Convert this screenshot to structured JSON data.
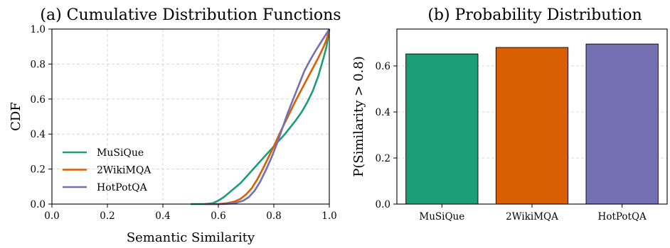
{
  "chart_data": [
    {
      "type": "line",
      "title": "(a) Cumulative Distribution Functions",
      "xlabel": "Semantic Similarity",
      "ylabel": "CDF",
      "xlim": [
        0.0,
        1.0
      ],
      "ylim": [
        0.0,
        1.0
      ],
      "xticks": [
        "0.0",
        "0.2",
        "0.4",
        "0.6",
        "0.8",
        "1.0"
      ],
      "yticks": [
        "0.0",
        "0.2",
        "0.4",
        "0.6",
        "0.8",
        "1.0"
      ],
      "grid": true,
      "legend": "lower-left",
      "series": [
        {
          "name": "MuSiQue",
          "color": "#1b9e77",
          "x": [
            0.5,
            0.55,
            0.58,
            0.6,
            0.62,
            0.65,
            0.68,
            0.7,
            0.72,
            0.74,
            0.76,
            0.78,
            0.8,
            0.82,
            0.84,
            0.86,
            0.88,
            0.9,
            0.92,
            0.94,
            0.96,
            0.98,
            0.99,
            1.0
          ],
          "y": [
            0.0,
            0.0,
            0.005,
            0.02,
            0.04,
            0.08,
            0.12,
            0.155,
            0.19,
            0.225,
            0.26,
            0.295,
            0.33,
            0.365,
            0.4,
            0.44,
            0.48,
            0.525,
            0.58,
            0.645,
            0.73,
            0.84,
            0.9,
            1.0
          ]
        },
        {
          "name": "2WikiMQA",
          "color": "#d95f02",
          "x": [
            0.55,
            0.6,
            0.63,
            0.66,
            0.68,
            0.7,
            0.72,
            0.74,
            0.76,
            0.78,
            0.8,
            0.82,
            0.84,
            0.86,
            0.88,
            0.9,
            0.92,
            0.94,
            0.96,
            0.98,
            0.99,
            1.0
          ],
          "y": [
            0.0,
            0.0,
            0.005,
            0.015,
            0.03,
            0.055,
            0.09,
            0.14,
            0.2,
            0.265,
            0.33,
            0.4,
            0.465,
            0.53,
            0.595,
            0.655,
            0.715,
            0.775,
            0.835,
            0.9,
            0.94,
            1.0
          ]
        },
        {
          "name": "HotPotQA",
          "color": "#7570b3",
          "x": [
            0.55,
            0.62,
            0.66,
            0.69,
            0.71,
            0.73,
            0.75,
            0.77,
            0.79,
            0.81,
            0.83,
            0.85,
            0.87,
            0.89,
            0.91,
            0.93,
            0.95,
            0.97,
            0.99,
            1.0
          ],
          "y": [
            0.0,
            0.0,
            0.005,
            0.02,
            0.04,
            0.075,
            0.125,
            0.19,
            0.26,
            0.34,
            0.43,
            0.52,
            0.6,
            0.68,
            0.76,
            0.82,
            0.875,
            0.925,
            0.975,
            1.0
          ]
        }
      ]
    },
    {
      "type": "bar",
      "title": "(b) Probability Distribution",
      "xlabel": "",
      "ylabel": "P(Similarity > 0.8)",
      "ylim": [
        0.0,
        0.76
      ],
      "yticks": [
        "0.0",
        "0.2",
        "0.4",
        "0.6"
      ],
      "grid": true,
      "categories": [
        "MuSiQue",
        "2WikiMQA",
        "HotPotQA"
      ],
      "values": [
        0.652,
        0.68,
        0.695
      ],
      "colors": [
        "#1b9e77",
        "#d95f02",
        "#7570b3"
      ]
    }
  ]
}
